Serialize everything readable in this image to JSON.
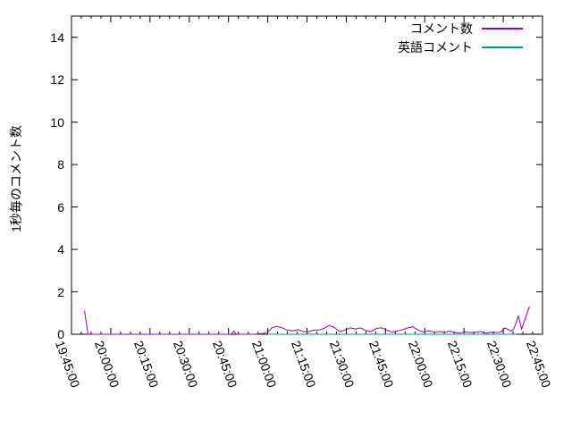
{
  "figure": {
    "background": "#ffffff",
    "border_color": "#000000",
    "text_color": "#000000"
  },
  "axes": {
    "y_label": "1秒毎のコメント数",
    "y_tick_labels": [
      "0",
      "2",
      "4",
      "6",
      "8",
      "10",
      "12",
      "14"
    ],
    "y_tick_values": [
      0,
      2,
      4,
      6,
      8,
      10,
      12,
      14
    ],
    "x_tick_labels": [
      "19:45:00",
      "20:00:00",
      "20:15:00",
      "20:30:00",
      "20:45:00",
      "21:00:00",
      "21:15:00",
      "21:30:00",
      "21:45:00",
      "22:00:00",
      "22:15:00",
      "22:30:00",
      "22:45:00"
    ]
  },
  "legend": {
    "entries": [
      {
        "key": "comments",
        "label": "コメント数",
        "color": "#9400d3"
      },
      {
        "key": "english-comments",
        "label": "英語コメント",
        "color": "#009e73"
      }
    ]
  },
  "chart_data": {
    "type": "line",
    "title": "",
    "xlabel": "",
    "ylabel": "1秒毎のコメント数",
    "x_unit": "minutes since 19:45:00",
    "x_axis_start": "19:45:00",
    "x_axis_end": "22:45:00",
    "x_major_tick_minutes": 15,
    "x_minor_ticks_per_major": 4,
    "xlim_minutes": [
      0,
      180
    ],
    "ylim": [
      0,
      15
    ],
    "grid": false,
    "legend_position": "top-right-inside",
    "series": [
      {
        "name": "コメント数",
        "key": "comments",
        "color": "#9400d3",
        "points": [
          [
            5,
            1.1
          ],
          [
            6.3,
            0
          ],
          [
            20,
            0
          ],
          [
            40,
            0
          ],
          [
            61,
            0
          ],
          [
            62,
            0.15
          ],
          [
            63,
            0
          ],
          [
            70,
            0
          ],
          [
            73,
            0.03
          ],
          [
            75,
            0.1
          ],
          [
            76.5,
            0.3
          ],
          [
            78.5,
            0.37
          ],
          [
            80.5,
            0.3
          ],
          [
            82.5,
            0.2
          ],
          [
            84.5,
            0.15
          ],
          [
            86.5,
            0.22
          ],
          [
            88.5,
            0.13
          ],
          [
            90.5,
            0.12
          ],
          [
            92.5,
            0.2
          ],
          [
            94.5,
            0.2
          ],
          [
            96.5,
            0.28
          ],
          [
            98.5,
            0.42
          ],
          [
            100.5,
            0.32
          ],
          [
            102.5,
            0.12
          ],
          [
            104.5,
            0.2
          ],
          [
            106.5,
            0.3
          ],
          [
            108.5,
            0.25
          ],
          [
            110.5,
            0.3
          ],
          [
            112.5,
            0.17
          ],
          [
            114.5,
            0.12
          ],
          [
            116.5,
            0.28
          ],
          [
            118.5,
            0.3
          ],
          [
            120.5,
            0.2
          ],
          [
            122.5,
            0.1
          ],
          [
            124.5,
            0.15
          ],
          [
            126.5,
            0.22
          ],
          [
            128.5,
            0.3
          ],
          [
            130.5,
            0.35
          ],
          [
            132.5,
            0.2
          ],
          [
            134.5,
            0.1
          ],
          [
            136.5,
            0.17
          ],
          [
            138.5,
            0.1
          ],
          [
            140.5,
            0.13
          ],
          [
            142.5,
            0.1
          ],
          [
            144.5,
            0.15
          ],
          [
            146.5,
            0.08
          ],
          [
            148.5,
            0.05
          ],
          [
            150.5,
            0.12
          ],
          [
            152.5,
            0.08
          ],
          [
            154.5,
            0.1
          ],
          [
            156.5,
            0.13
          ],
          [
            158.5,
            0.05
          ],
          [
            160.5,
            0.1
          ],
          [
            162.5,
            0.08
          ],
          [
            164,
            0.1
          ],
          [
            165.7,
            0.3
          ],
          [
            168,
            0.15
          ],
          [
            169,
            0.25
          ],
          [
            170.8,
            0.85
          ],
          [
            172,
            0.25
          ],
          [
            175,
            1.3
          ]
        ]
      },
      {
        "name": "英語コメント",
        "key": "english-comments",
        "color": "#009e73",
        "points": [
          [
            75,
            0
          ],
          [
            170,
            0
          ]
        ]
      }
    ]
  }
}
